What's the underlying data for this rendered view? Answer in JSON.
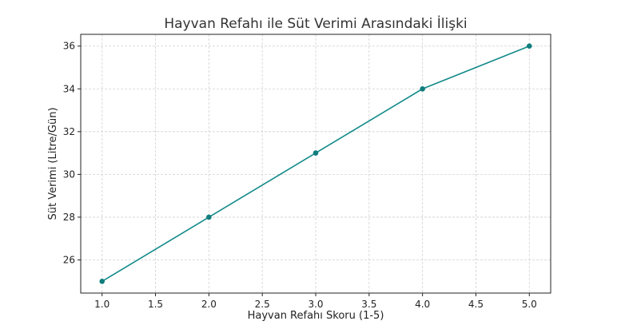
{
  "chart_data": {
    "type": "line",
    "title": "Hayvan Refahı ile Süt Verimi Arasındaki İlişki",
    "xlabel": "Hayvan Refahı Skoru (1-5)",
    "ylabel": "Süt Verimi (Litre/Gün)",
    "x": [
      1,
      2,
      3,
      4,
      5
    ],
    "series": [
      {
        "values": [
          25,
          28,
          31,
          34,
          36
        ]
      }
    ],
    "xlim": [
      0.8,
      5.2
    ],
    "ylim": [
      24.45,
      36.55
    ],
    "x_ticks": [
      "1.0",
      "1.5",
      "2.0",
      "2.5",
      "3.0",
      "3.5",
      "4.0",
      "4.5",
      "5.0"
    ],
    "y_ticks": [
      "26",
      "28",
      "30",
      "32",
      "34",
      "36"
    ],
    "grid": true,
    "colors": {
      "line": "#138a8a",
      "marker": "#117d7d"
    }
  }
}
